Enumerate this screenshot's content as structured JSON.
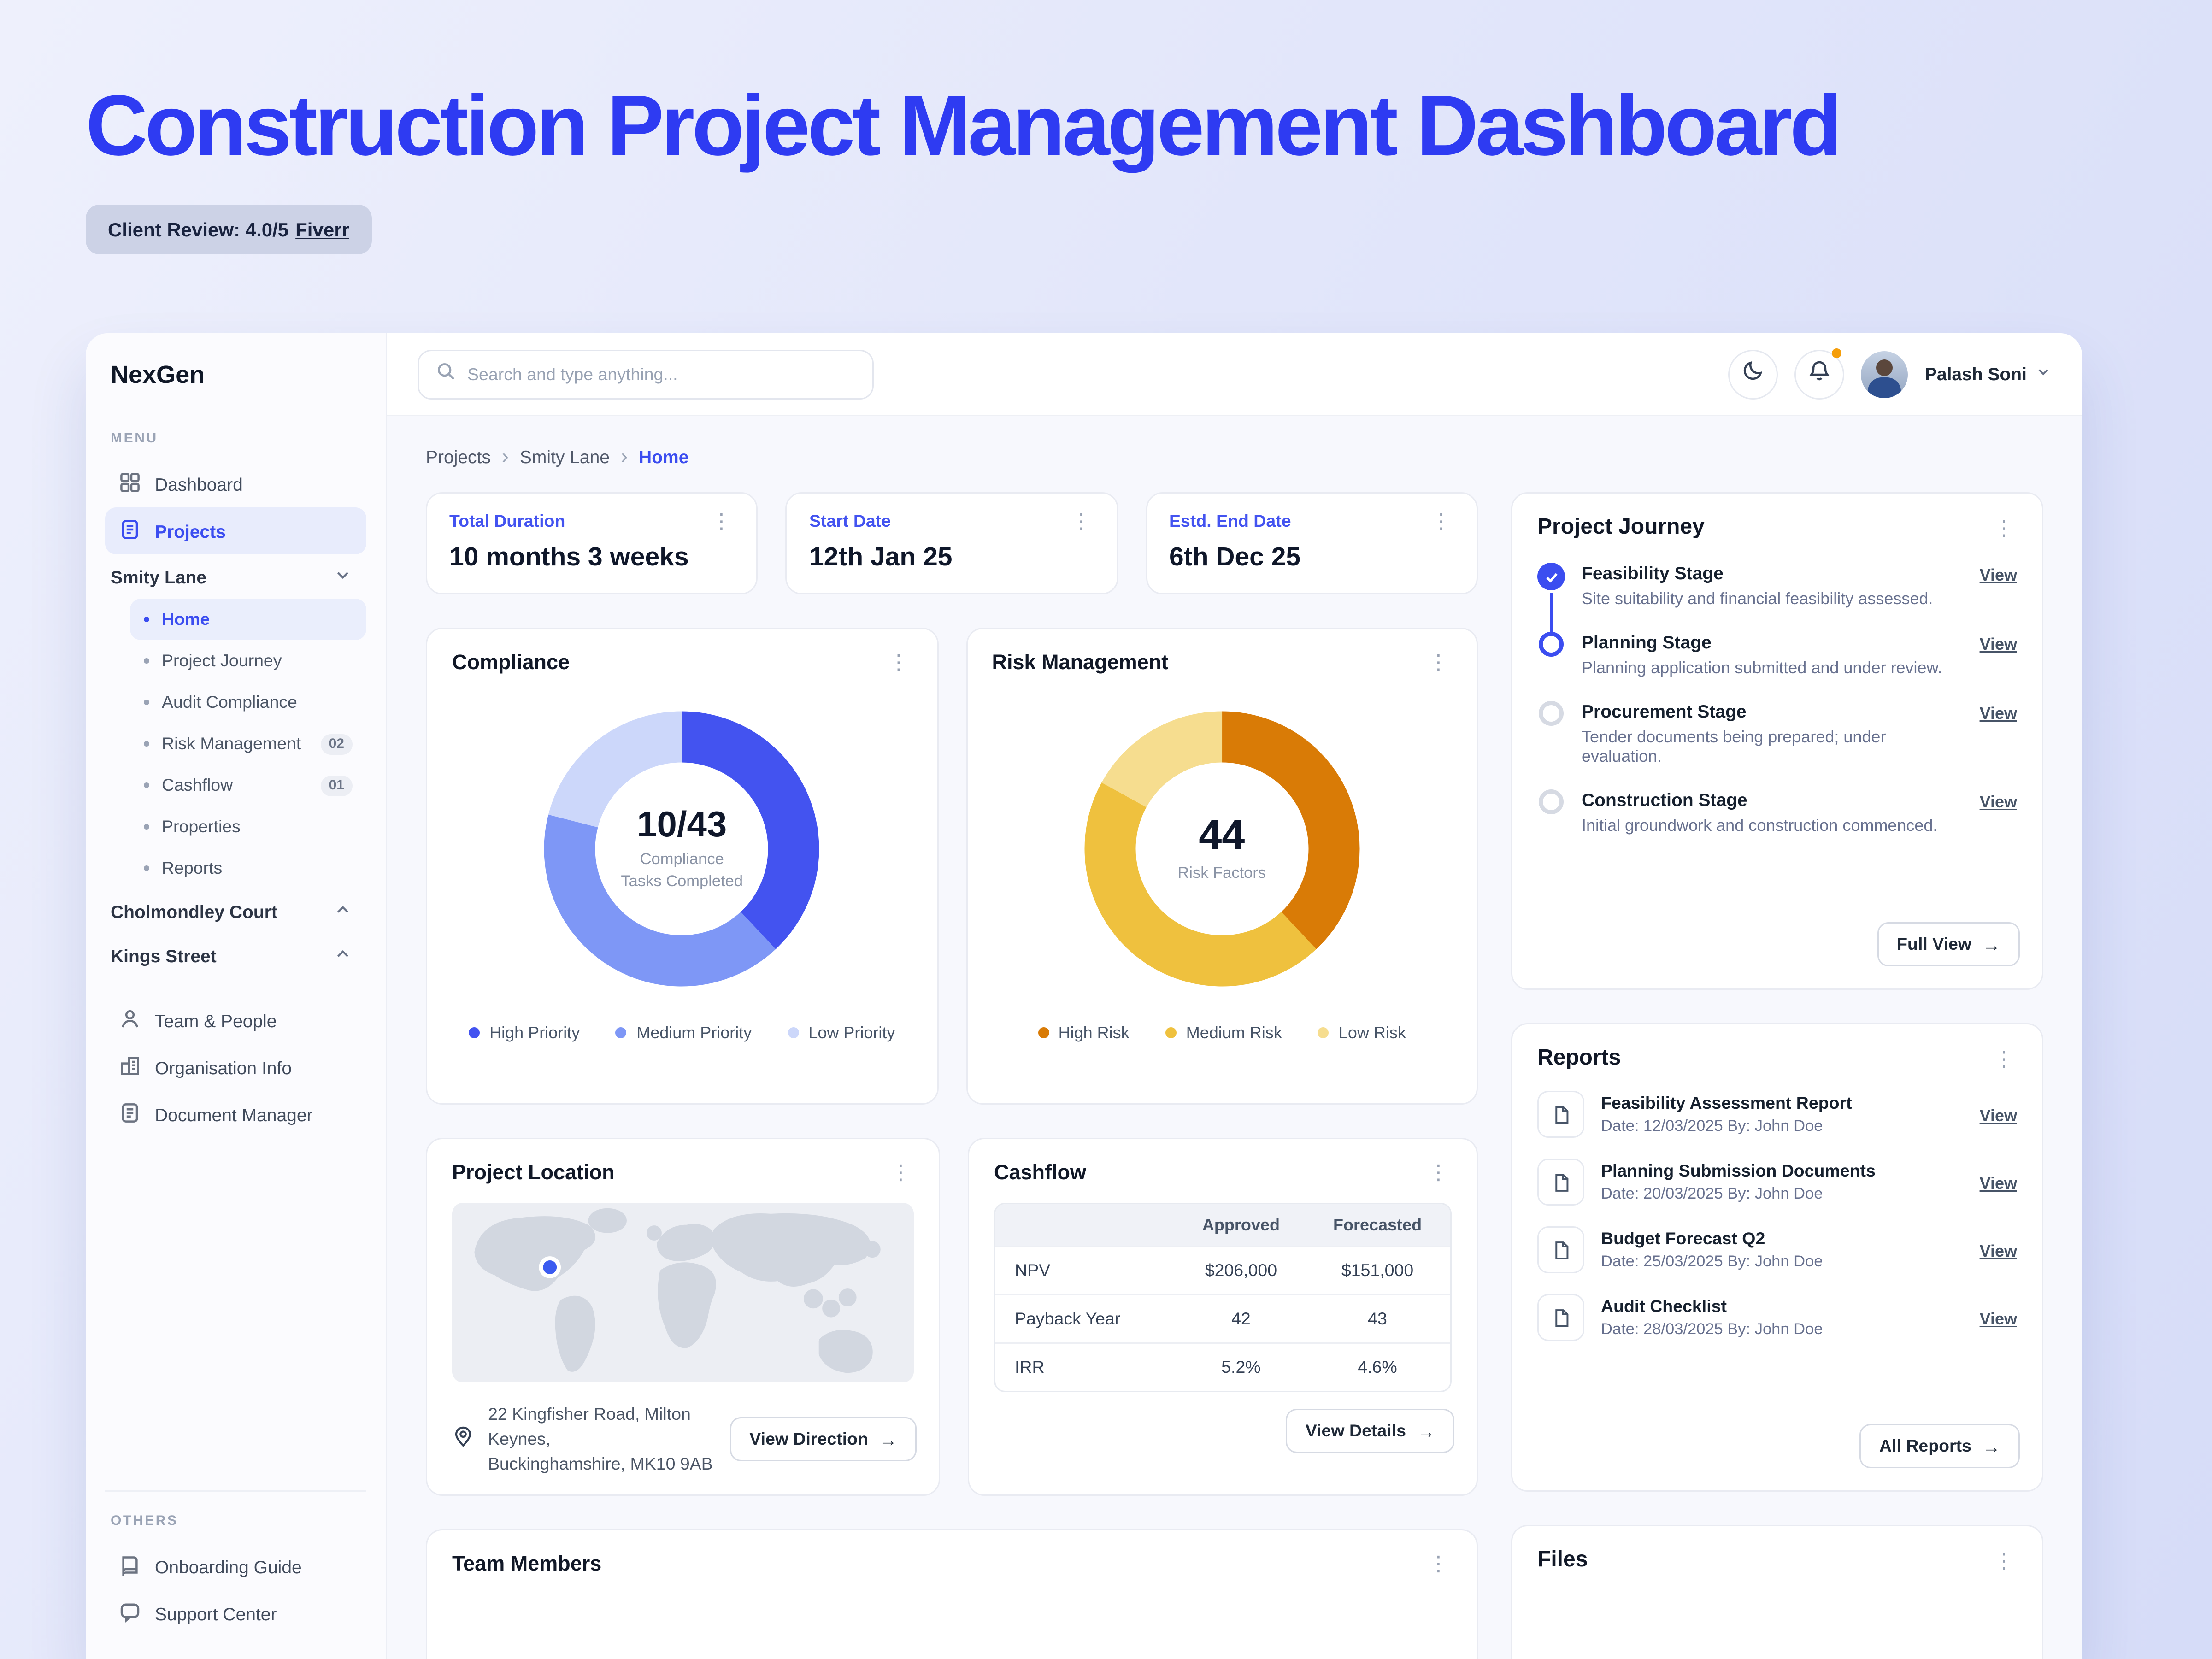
{
  "header": {
    "title": "Construction Project Management Dashboard",
    "review_badge": "Client Review: 4.0/5",
    "review_link": "Fiverr"
  },
  "sidebar": {
    "logo": "NexGen",
    "menu_label": "MENU",
    "others_label": "OTHERS",
    "dashboard": "Dashboard",
    "projects": "Projects",
    "smity_lane": "Smity Lane",
    "sub": [
      {
        "label": "Home"
      },
      {
        "label": "Project Journey"
      },
      {
        "label": "Audit Compliance"
      },
      {
        "label": "Risk Management",
        "badge": "02"
      },
      {
        "label": "Cashflow",
        "badge": "01"
      },
      {
        "label": "Properties"
      },
      {
        "label": "Reports"
      }
    ],
    "cholmondley": "Cholmondley Court",
    "kings": "Kings Street",
    "team": "Team & People",
    "org": "Organisation Info",
    "docmgr": "Document Manager",
    "onboarding": "Onboarding Guide",
    "support": "Support Center"
  },
  "topbar": {
    "search_placeholder": "Search and type anything...",
    "user_name": "Palash Soni"
  },
  "breadcrumb": {
    "items": [
      "Projects",
      "Smity Lane",
      "Home"
    ]
  },
  "stats": [
    {
      "label": "Total Duration",
      "value": "10 months 3 weeks"
    },
    {
      "label": "Start Date",
      "value": "12th Jan 25"
    },
    {
      "label": "Estd. End Date",
      "value": "6th Dec 25"
    }
  ],
  "compliance": {
    "title": "Compliance",
    "center_value": "10/43",
    "center_label_1": "Compliance",
    "center_label_2": "Tasks Completed",
    "segments": [
      {
        "label": "High Priority",
        "value": 38,
        "color": "#4353f0"
      },
      {
        "label": "Medium Priority",
        "value": 41,
        "color": "#7e97f6"
      },
      {
        "label": "Low Priority",
        "value": 21,
        "color": "#ccd7fa"
      }
    ]
  },
  "risk": {
    "title": "Risk Management",
    "center_value": "44",
    "center_label": "Risk Factors",
    "segments": [
      {
        "label": "High Risk",
        "value": 38,
        "color": "#d97b06"
      },
      {
        "label": "Medium Risk",
        "value": 45,
        "color": "#efc13e"
      },
      {
        "label": "Low Risk",
        "value": 17,
        "color": "#f6dd8f"
      }
    ]
  },
  "journey": {
    "title": "Project Journey",
    "view_label": "View",
    "full_view": "Full View",
    "stages": [
      {
        "title": "Feasibility Stage",
        "desc": "Site suitability and financial feasibility assessed.",
        "state": "done"
      },
      {
        "title": "Planning Stage",
        "desc": "Planning application submitted and under review.",
        "state": "active"
      },
      {
        "title": "Procurement Stage",
        "desc": "Tender documents being prepared; under evaluation.",
        "state": "todo"
      },
      {
        "title": "Construction Stage",
        "desc": "Initial groundwork and construction commenced.",
        "state": "todo"
      }
    ]
  },
  "location": {
    "title": "Project Location",
    "address_line1": "22 Kingfisher Road, Milton Keynes,",
    "address_line2": "Buckinghamshire, MK10 9AB",
    "button": "View Direction"
  },
  "cashflow": {
    "title": "Cashflow",
    "col_approved": "Approved",
    "col_forecasted": "Forecasted",
    "rows": [
      {
        "label": "NPV",
        "approved": "$206,000",
        "forecasted": "$151,000"
      },
      {
        "label": "Payback Year",
        "approved": "42",
        "forecasted": "43"
      },
      {
        "label": "IRR",
        "approved": "5.2%",
        "forecasted": "4.6%"
      }
    ],
    "button": "View Details"
  },
  "reports": {
    "title": "Reports",
    "view_label": "View",
    "button": "All Reports",
    "items": [
      {
        "title": "Feasibility Assessment Report",
        "meta": "Date: 12/03/2025  By: John Doe"
      },
      {
        "title": "Planning Submission Documents",
        "meta": "Date: 20/03/2025 By: John Doe"
      },
      {
        "title": "Budget Forecast Q2",
        "meta": "Date: 25/03/2025 By: John Doe"
      },
      {
        "title": "Audit Checklist",
        "meta": "Date: 28/03/2025 By: John Doe"
      }
    ]
  },
  "team": {
    "title": "Team Members"
  },
  "files": {
    "title": "Files"
  }
}
